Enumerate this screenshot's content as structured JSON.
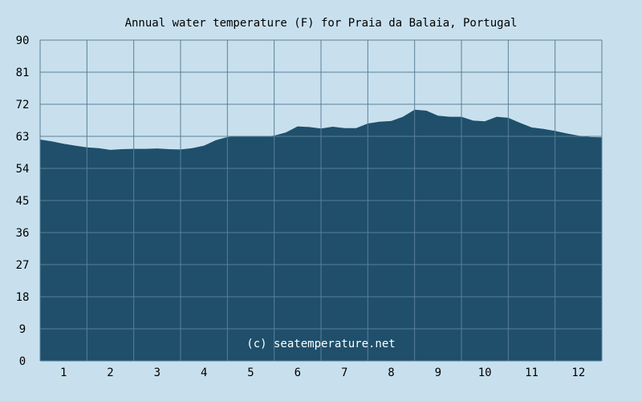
{
  "chart_data": {
    "type": "area",
    "title": "Annual water temperature (F) for Praia da Balaia, Portugal",
    "xlabel": "",
    "ylabel": "",
    "xlim": [
      0.5,
      12.5
    ],
    "ylim": [
      0,
      90
    ],
    "yticks": [
      "0",
      "9",
      "18",
      "27",
      "36",
      "45",
      "54",
      "63",
      "72",
      "81",
      "90"
    ],
    "xticks": [
      "1",
      "2",
      "3",
      "4",
      "5",
      "6",
      "7",
      "8",
      "9",
      "10",
      "11",
      "12"
    ],
    "grid": true,
    "x": [
      0.5,
      0.75,
      1.0,
      1.25,
      1.5,
      1.75,
      2.0,
      2.25,
      2.5,
      2.75,
      3.0,
      3.25,
      3.5,
      3.75,
      4.0,
      4.25,
      4.5,
      4.75,
      5.0,
      5.25,
      5.5,
      5.75,
      6.0,
      6.25,
      6.5,
      6.75,
      7.0,
      7.25,
      7.5,
      7.75,
      8.0,
      8.25,
      8.5,
      8.75,
      9.0,
      9.25,
      9.5,
      9.75,
      10.0,
      10.25,
      10.5,
      10.75,
      11.0,
      11.25,
      11.5,
      11.75,
      12.0,
      12.25,
      12.5
    ],
    "values": [
      62.1,
      61.6,
      60.9,
      60.4,
      59.9,
      59.7,
      59.2,
      59.4,
      59.5,
      59.5,
      59.6,
      59.4,
      59.3,
      59.7,
      60.4,
      61.9,
      62.8,
      63.1,
      62.9,
      62.9,
      63.2,
      64.1,
      65.8,
      65.6,
      65.2,
      65.7,
      65.3,
      65.3,
      66.6,
      67.1,
      67.3,
      68.5,
      70.5,
      70.2,
      68.8,
      68.5,
      68.5,
      67.4,
      67.2,
      68.5,
      68.2,
      66.8,
      65.5,
      65.1,
      64.5,
      63.8,
      63.2,
      62.8,
      62.7
    ],
    "colors": {
      "background": "#c8e0ee",
      "area_fill": "#1f4f6b",
      "grid": "#5b7f98",
      "watermark": "#ffffff"
    },
    "watermark": "(c) seatemperature.net"
  }
}
